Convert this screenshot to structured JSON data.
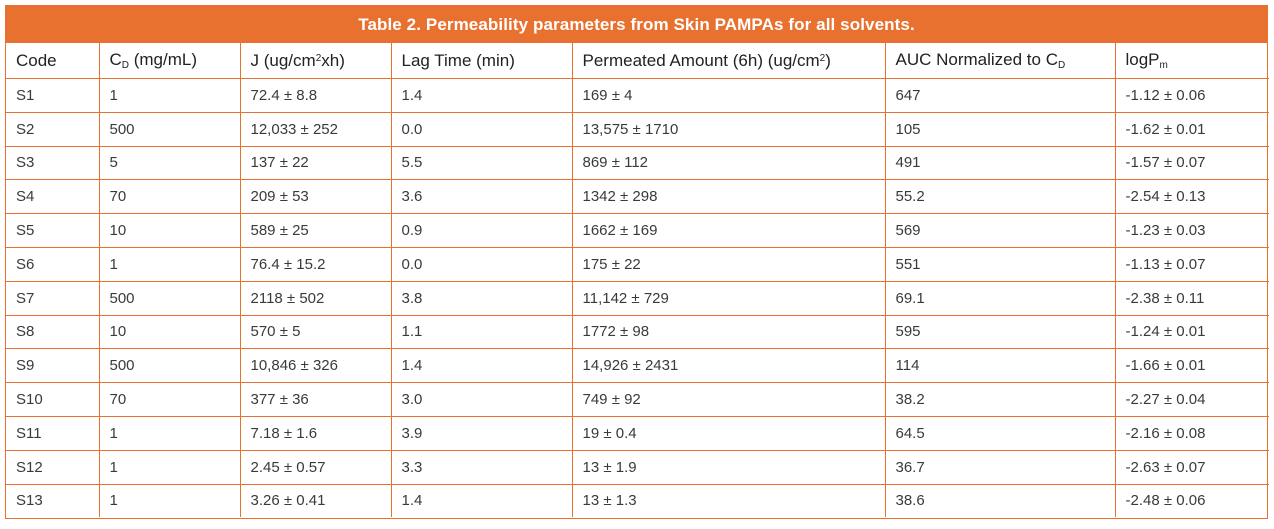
{
  "table": {
    "title": "Table 2. Permeability parameters from Skin PAMPAs for all solvents.",
    "headers": {
      "code": "Code",
      "cd_main": "C",
      "cd_sub": "D",
      "cd_rest": " (mg/mL)",
      "j_main": "J (ug/cm",
      "j_sup": "2",
      "j_rest": "xh)",
      "lag": "Lag Time (min)",
      "perm_main": "Permeated Amount (6h) (ug/cm",
      "perm_sup": "2",
      "perm_rest": ")",
      "auc_main": "AUC Normalized to C",
      "auc_sub": "D",
      "logp_main": "logP",
      "logp_sub": "m"
    },
    "rows": [
      {
        "code": "S1",
        "cd": "1",
        "j": "72.4 ± 8.8",
        "lag": "1.4",
        "perm": "169 ± 4",
        "auc": "647",
        "logp": "-1.12 ± 0.06"
      },
      {
        "code": "S2",
        "cd": "500",
        "j": "12,033 ± 252",
        "lag": "0.0",
        "perm": "13,575 ± 1710",
        "auc": "105",
        "logp": "-1.62 ± 0.01"
      },
      {
        "code": "S3",
        "cd": "5",
        "j": "137 ± 22",
        "lag": "5.5",
        "perm": "869 ± 112",
        "auc": "491",
        "logp": "-1.57 ± 0.07"
      },
      {
        "code": "S4",
        "cd": "70",
        "j": "209 ± 53",
        "lag": "3.6",
        "perm": "1342 ± 298",
        "auc": "55.2",
        "logp": "-2.54 ± 0.13"
      },
      {
        "code": "S5",
        "cd": "10",
        "j": "589 ± 25",
        "lag": "0.9",
        "perm": "1662 ± 169",
        "auc": "569",
        "logp": "-1.23 ± 0.03"
      },
      {
        "code": "S6",
        "cd": "1",
        "j": "76.4 ± 15.2",
        "lag": "0.0",
        "perm": "175 ± 22",
        "auc": "551",
        "logp": "-1.13 ± 0.07"
      },
      {
        "code": "S7",
        "cd": "500",
        "j": "2118 ± 502",
        "lag": "3.8",
        "perm": "11,142 ± 729",
        "auc": "69.1",
        "logp": "-2.38 ± 0.11"
      },
      {
        "code": "S8",
        "cd": "10",
        "j": "570 ± 5",
        "lag": "1.1",
        "perm": "1772 ± 98",
        "auc": "595",
        "logp": "-1.24 ± 0.01"
      },
      {
        "code": "S9",
        "cd": "500",
        "j": "10,846 ± 326",
        "lag": "1.4",
        "perm": "14,926 ± 2431",
        "auc": "114",
        "logp": "-1.66 ± 0.01"
      },
      {
        "code": "S10",
        "cd": "70",
        "j": "377 ± 36",
        "lag": "3.0",
        "perm": "749 ± 92",
        "auc": "38.2",
        "logp": "-2.27 ± 0.04"
      },
      {
        "code": "S11",
        "cd": "1",
        "j": "7.18 ± 1.6",
        "lag": "3.9",
        "perm": "19 ± 0.4",
        "auc": "64.5",
        "logp": "-2.16 ± 0.08"
      },
      {
        "code": "S12",
        "cd": "1",
        "j": "2.45 ± 0.57",
        "lag": "3.3",
        "perm": "13 ± 1.9",
        "auc": "36.7",
        "logp": "-2.63 ± 0.07"
      },
      {
        "code": "S13",
        "cd": "1",
        "j": "3.26 ± 0.41",
        "lag": "1.4",
        "perm": "13 ± 1.3",
        "auc": "38.6",
        "logp": "-2.48 ± 0.06"
      }
    ]
  },
  "colors": {
    "accent": "#e8712f",
    "title_text": "#ffffff",
    "body_text": "#3a3a3a"
  }
}
